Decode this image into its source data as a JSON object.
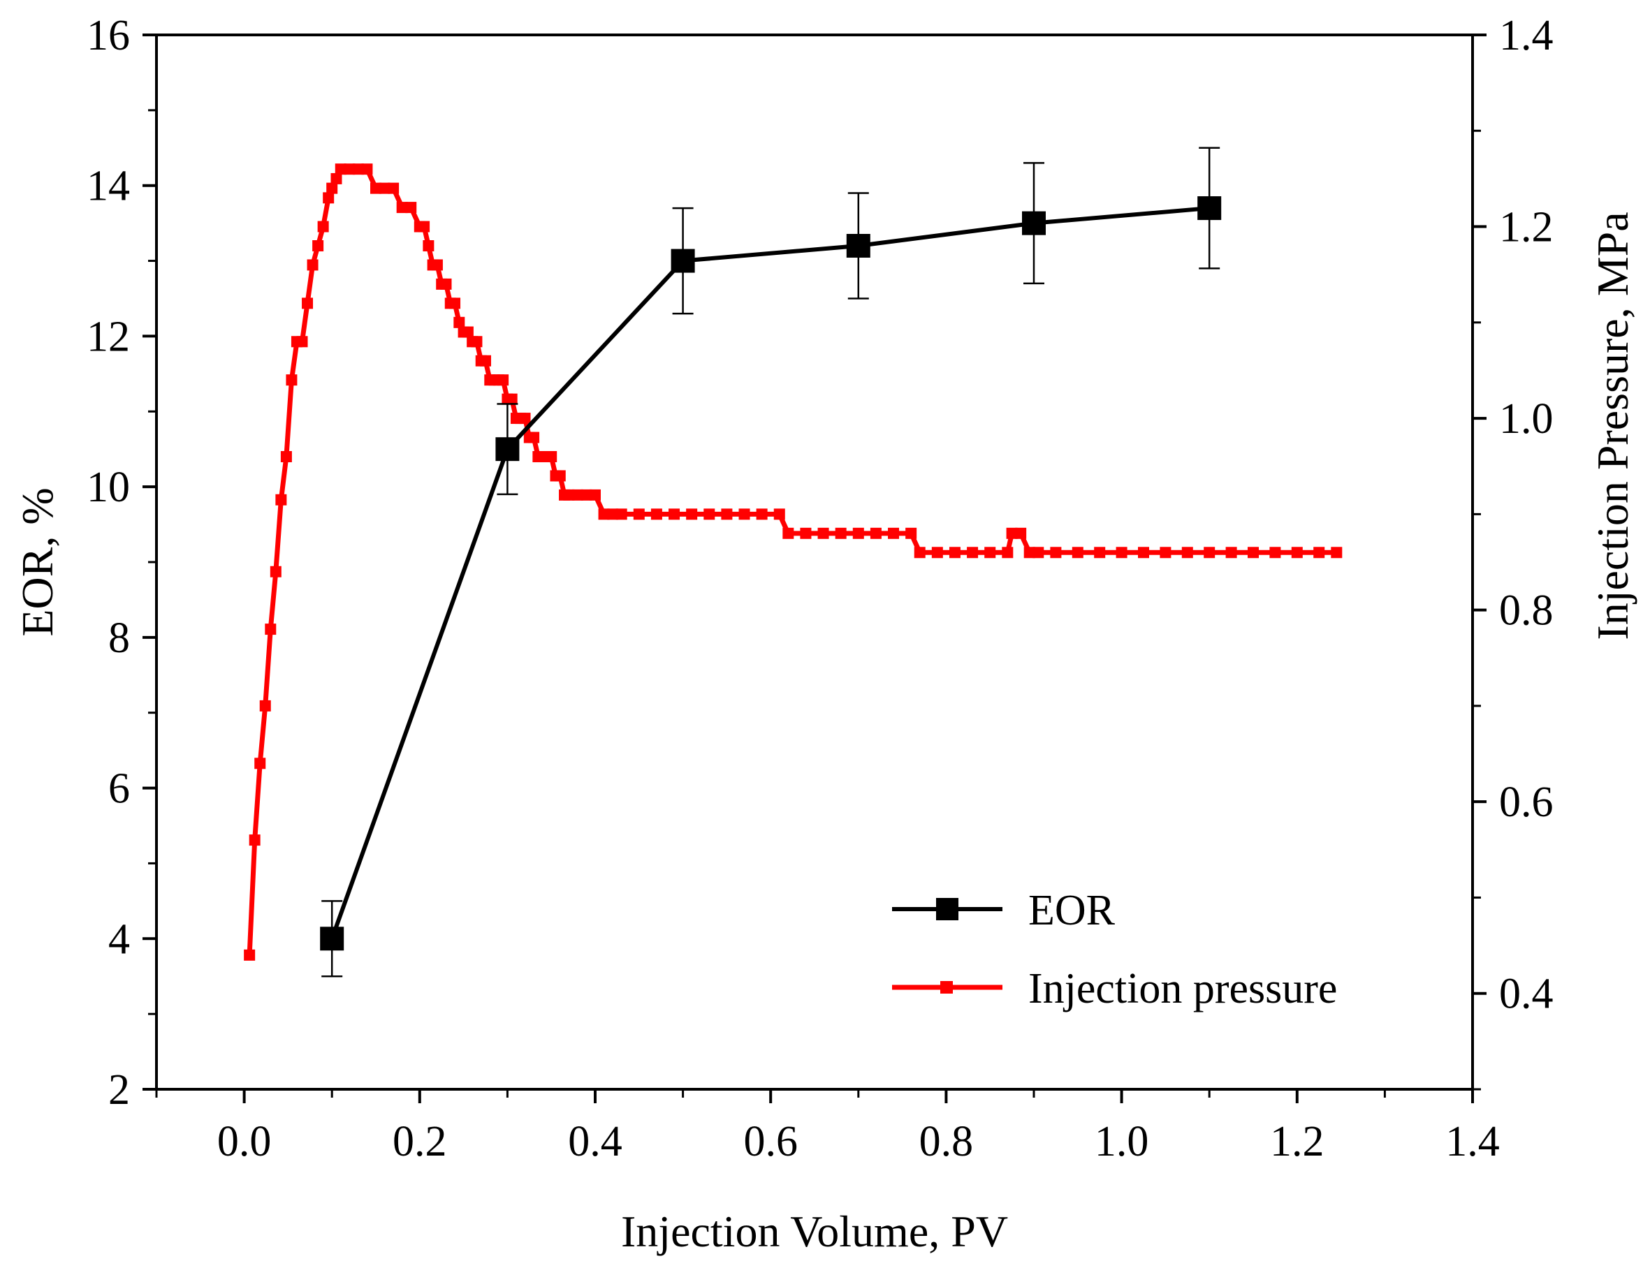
{
  "chart_data": {
    "type": "line",
    "title": "",
    "xlabel": "Injection Volume, PV",
    "ylabel_left": "EOR, %",
    "ylabel_right": "Injection Pressure, MPa",
    "xlim": [
      -0.1,
      1.4
    ],
    "ylim_left": [
      2,
      16
    ],
    "ylim_right": [
      0.3,
      1.4
    ],
    "x_ticks": [
      "0.0",
      "0.2",
      "0.4",
      "0.6",
      "0.8",
      "1.0",
      "1.2",
      "1.4"
    ],
    "y_left_ticks": [
      "2",
      "4",
      "6",
      "8",
      "10",
      "12",
      "14",
      "16"
    ],
    "y_right_ticks": [
      "0.4",
      "0.6",
      "0.8",
      "1.0",
      "1.2",
      "1.4"
    ],
    "grid": false,
    "legend_position": "bottom-right",
    "series": [
      {
        "name": "EOR",
        "axis": "left",
        "color": "#000000",
        "marker": "square",
        "x": [
          0.1,
          0.3,
          0.5,
          0.7,
          0.9,
          1.1
        ],
        "y": [
          4.0,
          10.5,
          13.0,
          13.2,
          13.5,
          13.7
        ],
        "error": [
          0.5,
          0.6,
          0.7,
          0.7,
          0.8,
          0.8
        ]
      },
      {
        "name": "Injection pressure",
        "axis": "right",
        "color": "#ff0000",
        "marker": "square",
        "x": [
          0.006,
          0.012,
          0.018,
          0.024,
          0.03,
          0.036,
          0.042,
          0.048,
          0.054,
          0.06,
          0.066,
          0.072,
          0.078,
          0.084,
          0.09,
          0.096,
          0.1,
          0.105,
          0.11,
          0.12,
          0.13,
          0.14,
          0.15,
          0.16,
          0.17,
          0.18,
          0.19,
          0.2,
          0.205,
          0.21,
          0.215,
          0.22,
          0.225,
          0.23,
          0.235,
          0.24,
          0.245,
          0.25,
          0.255,
          0.26,
          0.265,
          0.27,
          0.275,
          0.28,
          0.285,
          0.29,
          0.295,
          0.3,
          0.305,
          0.31,
          0.315,
          0.32,
          0.325,
          0.33,
          0.335,
          0.34,
          0.345,
          0.35,
          0.355,
          0.36,
          0.365,
          0.37,
          0.38,
          0.39,
          0.4,
          0.41,
          0.42,
          0.43,
          0.45,
          0.47,
          0.49,
          0.51,
          0.53,
          0.55,
          0.57,
          0.59,
          0.61,
          0.62,
          0.64,
          0.66,
          0.68,
          0.7,
          0.72,
          0.74,
          0.76,
          0.77,
          0.79,
          0.81,
          0.83,
          0.85,
          0.87,
          0.875,
          0.885,
          0.895,
          0.905,
          0.925,
          0.95,
          0.975,
          1.0,
          1.025,
          1.05,
          1.075,
          1.1,
          1.125,
          1.15,
          1.175,
          1.2,
          1.225,
          1.245
        ],
        "y": [
          0.44,
          0.56,
          0.64,
          0.7,
          0.78,
          0.84,
          0.915,
          0.96,
          1.04,
          1.08,
          1.08,
          1.12,
          1.16,
          1.18,
          1.2,
          1.23,
          1.24,
          1.25,
          1.26,
          1.26,
          1.26,
          1.26,
          1.24,
          1.24,
          1.24,
          1.22,
          1.22,
          1.2,
          1.2,
          1.18,
          1.16,
          1.16,
          1.14,
          1.14,
          1.12,
          1.12,
          1.1,
          1.09,
          1.09,
          1.08,
          1.08,
          1.06,
          1.06,
          1.04,
          1.04,
          1.04,
          1.04,
          1.02,
          1.02,
          1.0,
          1.0,
          1.0,
          0.98,
          0.98,
          0.96,
          0.96,
          0.96,
          0.96,
          0.94,
          0.94,
          0.92,
          0.92,
          0.92,
          0.92,
          0.92,
          0.9,
          0.9,
          0.9,
          0.9,
          0.9,
          0.9,
          0.9,
          0.9,
          0.9,
          0.9,
          0.9,
          0.9,
          0.88,
          0.88,
          0.88,
          0.88,
          0.88,
          0.88,
          0.88,
          0.88,
          0.86,
          0.86,
          0.86,
          0.86,
          0.86,
          0.86,
          0.88,
          0.88,
          0.86,
          0.86,
          0.86,
          0.86,
          0.86,
          0.86,
          0.86,
          0.86,
          0.86,
          0.86,
          0.86,
          0.86,
          0.86,
          0.86,
          0.86,
          0.86
        ]
      }
    ]
  }
}
